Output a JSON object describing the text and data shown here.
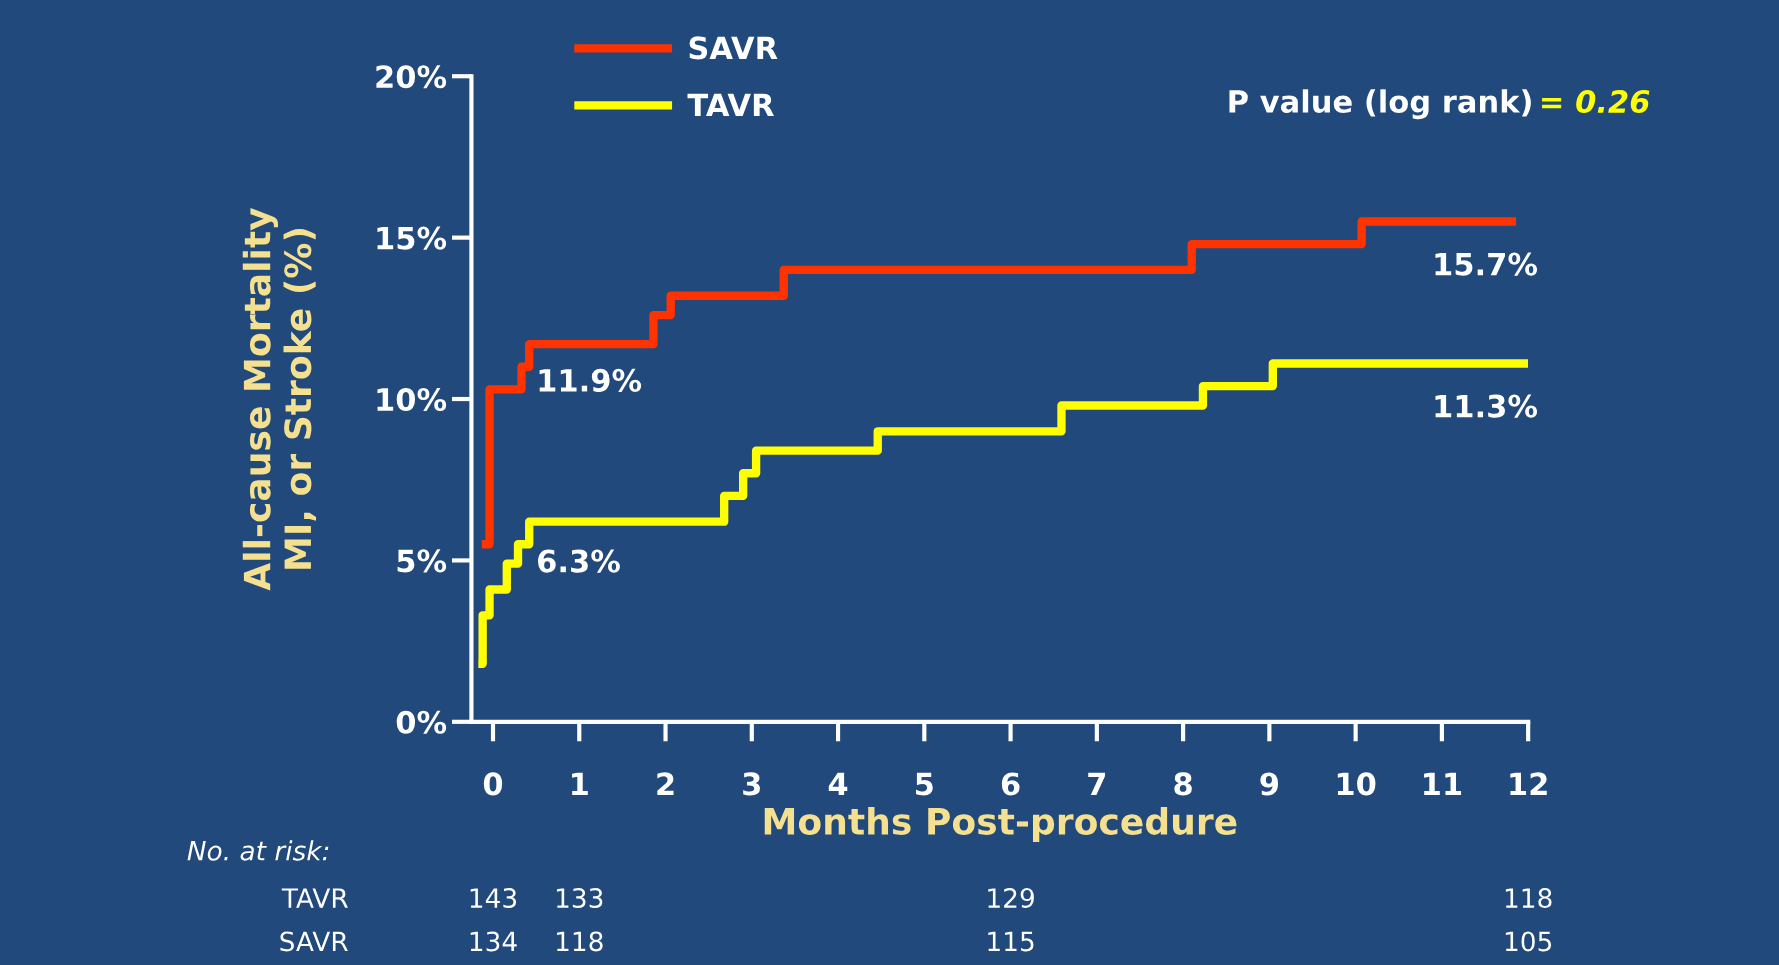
{
  "chart_data": {
    "type": "step",
    "ylabel": "All-cause Mortality\nMI, or Stroke (%)",
    "xlabel": "Months Post-procedure",
    "xlim": [
      -0.25,
      12
    ],
    "xticks": [
      0,
      1,
      2,
      3,
      4,
      5,
      6,
      7,
      8,
      9,
      10,
      11,
      12
    ],
    "ylim": [
      0,
      20
    ],
    "yticks": [
      {
        "value": 0,
        "label": "0%"
      },
      {
        "value": 5,
        "label": "5%"
      },
      {
        "value": 10,
        "label": "10%"
      },
      {
        "value": 15,
        "label": "15%"
      },
      {
        "value": 20,
        "label": "20%"
      }
    ],
    "grid": false,
    "legend": "top left",
    "marker": "none",
    "line_style": "solid",
    "series": [
      {
        "name": "SAVR",
        "color": "#ff3300",
        "x": [
          -0.13,
          -0.04,
          0.33,
          0.42,
          1.86,
          2.06,
          3.37,
          8.1,
          10.07,
          11.86
        ],
        "values": [
          5.5,
          10.3,
          11.0,
          11.7,
          12.6,
          13.2,
          14.0,
          14.8,
          15.5,
          15.5
        ]
      },
      {
        "name": "TAVR",
        "color": "#ffff00",
        "x": [
          -0.17,
          -0.12,
          -0.04,
          0.16,
          0.29,
          0.42,
          2.68,
          2.9,
          3.05,
          4.46,
          6.59,
          8.23,
          9.04,
          12.0
        ],
        "values": [
          1.8,
          3.3,
          4.1,
          4.9,
          5.5,
          6.2,
          7.0,
          7.7,
          8.4,
          9.0,
          9.8,
          10.4,
          11.1,
          11.1
        ]
      }
    ],
    "annotations": [
      {
        "text": "11.9%",
        "x": 0.5,
        "y": 11.9
      },
      {
        "text": "6.3%",
        "x": 0.5,
        "y": 6.3
      },
      "15.7%",
      "11.3%",
      "P value (log rank)",
      "= 0.26",
      "No. at risk:",
      "TAVR",
      "143",
      "133",
      "129",
      "118",
      "SAVR",
      "134",
      "118",
      "115",
      "105"
    ]
  }
}
